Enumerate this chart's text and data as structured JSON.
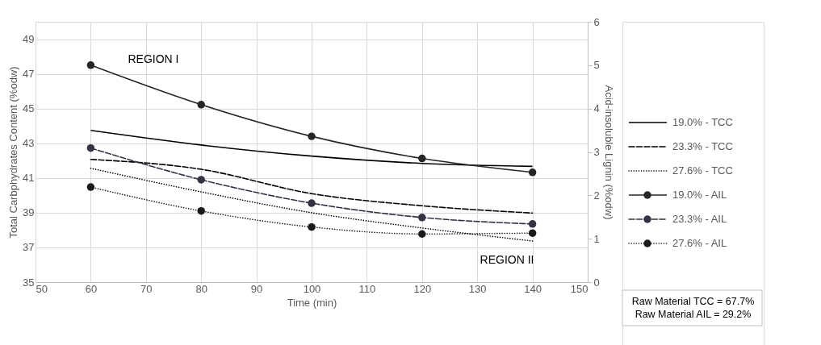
{
  "chart_data": {
    "type": "line",
    "xlabel": "Time (min)",
    "ylabel": "Total Carbphydrates Content (%odw)",
    "y2label": "Acid-insoluble Lignin (%odw)",
    "x": [
      60,
      80,
      100,
      120,
      140
    ],
    "xlim": [
      50,
      150
    ],
    "xticks": [
      50,
      60,
      70,
      80,
      90,
      100,
      110,
      120,
      130,
      140,
      150
    ],
    "ylim": [
      35,
      50
    ],
    "yticks": [
      35,
      37,
      39,
      41,
      43,
      45,
      47,
      49
    ],
    "y2lim": [
      0,
      6
    ],
    "y2ticks": [
      0,
      1,
      2,
      3,
      4,
      5,
      6
    ],
    "grid": true,
    "legend": "right",
    "series": [
      {
        "name": "19.0% - TCC",
        "color": "#000000",
        "line_style": "solid",
        "marker": "none",
        "values": [
          43.74,
          42.9,
          42.26,
          41.84,
          41.67
        ]
      },
      {
        "name": "23.3% - TCC",
        "color": "#000000",
        "line_style": "dashed",
        "marker": "none",
        "values": [
          42.07,
          41.5,
          40.1,
          39.4,
          38.98
        ]
      },
      {
        "name": "27.6% - TCC",
        "color": "#000000",
        "line_style": "dotted",
        "marker": "none",
        "values": [
          41.56,
          40.2,
          39.0,
          38.12,
          37.37
        ]
      },
      {
        "name": "19.0% - AIL",
        "color": "#262626",
        "axis": "y2",
        "line_style": "solid",
        "marker": "circle",
        "values": [
          5.0,
          4.09,
          3.36,
          2.85,
          2.53
        ]
      },
      {
        "name": "23.3% - AIL",
        "color": "#333344",
        "axis": "y2",
        "line_style": "dashed",
        "marker": "circle",
        "values": [
          3.09,
          2.36,
          1.82,
          1.49,
          1.34
        ]
      },
      {
        "name": "27.6% - AIL",
        "color": "#1a1a1a",
        "axis": "y2",
        "line_style": "dotted",
        "marker": "circle",
        "values": [
          2.19,
          1.64,
          1.27,
          1.11,
          1.13
        ]
      }
    ],
    "annotations": [
      "REGION I",
      "REGION II",
      "Raw Material TCC = 67.7%",
      "Raw Material AIL = 29.2%"
    ]
  }
}
